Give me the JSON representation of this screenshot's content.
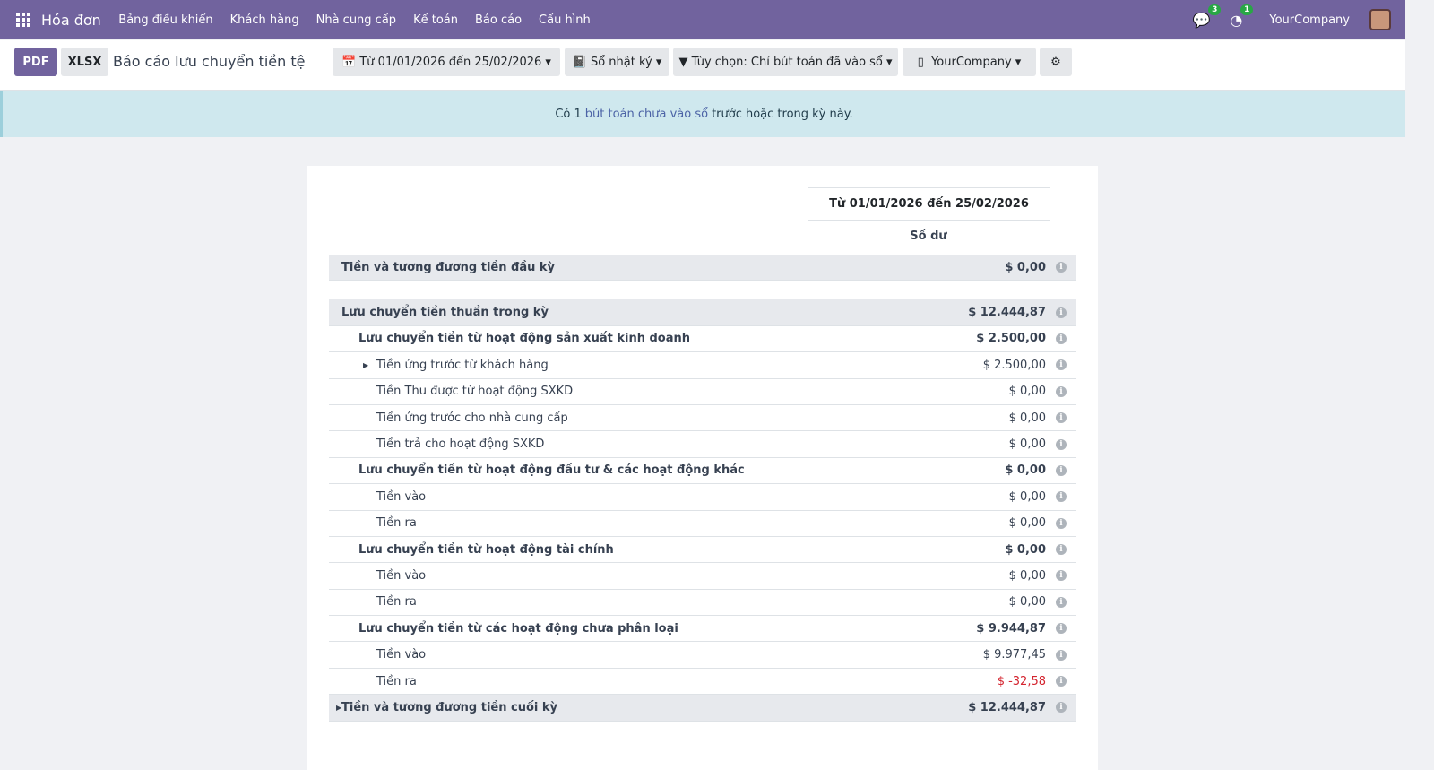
{
  "topbar": {
    "app": "Hóa đơn",
    "menu": [
      "Bảng điều khiển",
      "Khách hàng",
      "Nhà cung cấp",
      "Kế toán",
      "Báo cáo",
      "Cấu hình"
    ],
    "messages_count": "3",
    "activities_count": "1",
    "company": "YourCompany"
  },
  "controls": {
    "pdf": "PDF",
    "xlsx": "XLSX",
    "title": "Báo cáo lưu chuyển tiền tệ",
    "date_filter": "Từ 01/01/2026 đến 25/02/2026",
    "journals": "Sổ nhật ký",
    "options": "Tùy chọn: Chỉ bút toán đã vào sổ",
    "company": "YourCompany"
  },
  "alert": {
    "prefix": "Có 1",
    "link": "bút toán chưa vào sổ",
    "suffix": "trước hoặc trong kỳ này."
  },
  "report": {
    "period": "Từ 01/01/2026 đến 25/02/2026",
    "column": "Số dư",
    "rows": [
      {
        "label": "Tiền và tương đương tiền đầu kỳ",
        "value": "$ 0,00",
        "level": 0,
        "type": "total"
      },
      {
        "gap": true
      },
      {
        "label": "Lưu chuyển tiền thuần trong kỳ",
        "value": "$ 12.444,87",
        "level": 0,
        "type": "total"
      },
      {
        "label": "Lưu chuyển tiền từ hoạt động sản xuất kinh doanh",
        "value": "$ 2.500,00",
        "level": 1,
        "type": "b"
      },
      {
        "label": "Tiền ứng trước từ khách hàng",
        "value": "$ 2.500,00",
        "level": 2,
        "caret": true
      },
      {
        "label": "Tiền Thu được từ hoạt động SXKD",
        "value": "$ 0,00",
        "level": 2
      },
      {
        "label": "Tiền ứng trước cho nhà cung cấp",
        "value": "$ 0,00",
        "level": 2
      },
      {
        "label": "Tiền trả cho hoạt động SXKD",
        "value": "$ 0,00",
        "level": 2
      },
      {
        "label": "Lưu chuyển tiền từ hoạt động đầu tư & các hoạt động khác",
        "value": "$ 0,00",
        "level": 1,
        "type": "b"
      },
      {
        "label": "Tiền vào",
        "value": "$ 0,00",
        "level": 2
      },
      {
        "label": "Tiền ra",
        "value": "$ 0,00",
        "level": 2
      },
      {
        "label": "Lưu chuyển tiền từ hoạt động tài chính",
        "value": "$ 0,00",
        "level": 1,
        "type": "b"
      },
      {
        "label": "Tiền vào",
        "value": "$ 0,00",
        "level": 2
      },
      {
        "label": "Tiền ra",
        "value": "$ 0,00",
        "level": 2
      },
      {
        "label": "Lưu chuyển tiền từ các hoạt động chưa phân loại",
        "value": "$ 9.944,87",
        "level": 1,
        "type": "b"
      },
      {
        "label": "Tiền vào",
        "value": "$ 9.977,45",
        "level": 2
      },
      {
        "label": "Tiền ra",
        "value": "$ -32,58",
        "level": 2,
        "negative": true
      },
      {
        "label": "Tiền và tương đương tiền cuối kỳ",
        "value": "$ 12.444,87",
        "level": 0,
        "type": "total",
        "caret": true
      }
    ]
  },
  "colors": {
    "brand": "#71639e",
    "alert_bg": "#cfe8ee",
    "negative": "#d4242f"
  }
}
